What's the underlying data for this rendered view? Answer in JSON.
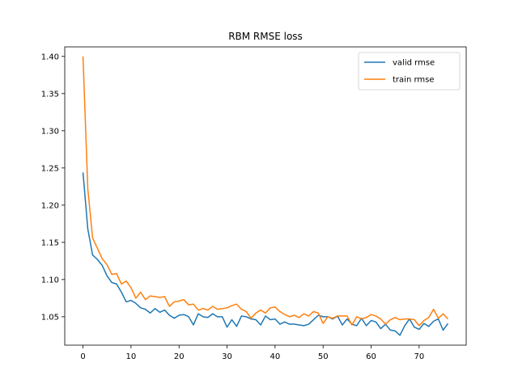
{
  "chart_data": {
    "type": "line",
    "title": "RBM RMSE loss",
    "xlabel": "",
    "ylabel": "",
    "xlim": [
      -3.8,
      79.8
    ],
    "ylim": [
      1.0118,
      1.4128
    ],
    "xticks": [
      0,
      10,
      20,
      30,
      40,
      50,
      60,
      70
    ],
    "yticks": [
      1.05,
      1.1,
      1.15,
      1.2,
      1.25,
      1.3,
      1.35,
      1.4
    ],
    "ytick_labels": [
      "1.05",
      "1.10",
      "1.15",
      "1.20",
      "1.25",
      "1.30",
      "1.35",
      "1.40"
    ],
    "legend": {
      "position": "top-right"
    },
    "grid": false,
    "series": [
      {
        "name": "valid rmse",
        "color": "#1f77b4",
        "values": [
          1.244,
          1.168,
          1.133,
          1.127,
          1.119,
          1.105,
          1.096,
          1.094,
          1.083,
          1.07,
          1.072,
          1.068,
          1.062,
          1.06,
          1.055,
          1.061,
          1.056,
          1.059,
          1.052,
          1.048,
          1.052,
          1.053,
          1.05,
          1.039,
          1.054,
          1.05,
          1.049,
          1.054,
          1.05,
          1.05,
          1.036,
          1.046,
          1.037,
          1.051,
          1.05,
          1.047,
          1.046,
          1.039,
          1.051,
          1.046,
          1.047,
          1.04,
          1.043,
          1.04,
          1.04,
          1.039,
          1.038,
          1.04,
          1.046,
          1.052,
          1.05,
          1.05,
          1.047,
          1.051,
          1.039,
          1.047,
          1.04,
          1.038,
          1.048,
          1.038,
          1.045,
          1.043,
          1.034,
          1.04,
          1.032,
          1.031,
          1.025,
          1.038,
          1.047,
          1.036,
          1.033,
          1.041,
          1.037,
          1.044,
          1.047,
          1.032,
          1.041
        ]
      },
      {
        "name": "train rmse",
        "color": "#ff7f0e",
        "values": [
          1.4,
          1.222,
          1.156,
          1.142,
          1.128,
          1.12,
          1.107,
          1.108,
          1.094,
          1.098,
          1.089,
          1.075,
          1.083,
          1.073,
          1.078,
          1.077,
          1.076,
          1.077,
          1.064,
          1.07,
          1.071,
          1.073,
          1.066,
          1.067,
          1.059,
          1.061,
          1.059,
          1.064,
          1.06,
          1.061,
          1.062,
          1.065,
          1.067,
          1.06,
          1.057,
          1.048,
          1.055,
          1.059,
          1.055,
          1.062,
          1.063,
          1.057,
          1.053,
          1.05,
          1.052,
          1.049,
          1.054,
          1.051,
          1.057,
          1.055,
          1.041,
          1.05,
          1.048,
          1.051,
          1.051,
          1.051,
          1.039,
          1.05,
          1.047,
          1.049,
          1.053,
          1.051,
          1.047,
          1.04,
          1.046,
          1.049,
          1.046,
          1.047,
          1.047,
          1.046,
          1.038,
          1.045,
          1.049,
          1.06,
          1.048,
          1.054,
          1.047
        ]
      }
    ]
  }
}
